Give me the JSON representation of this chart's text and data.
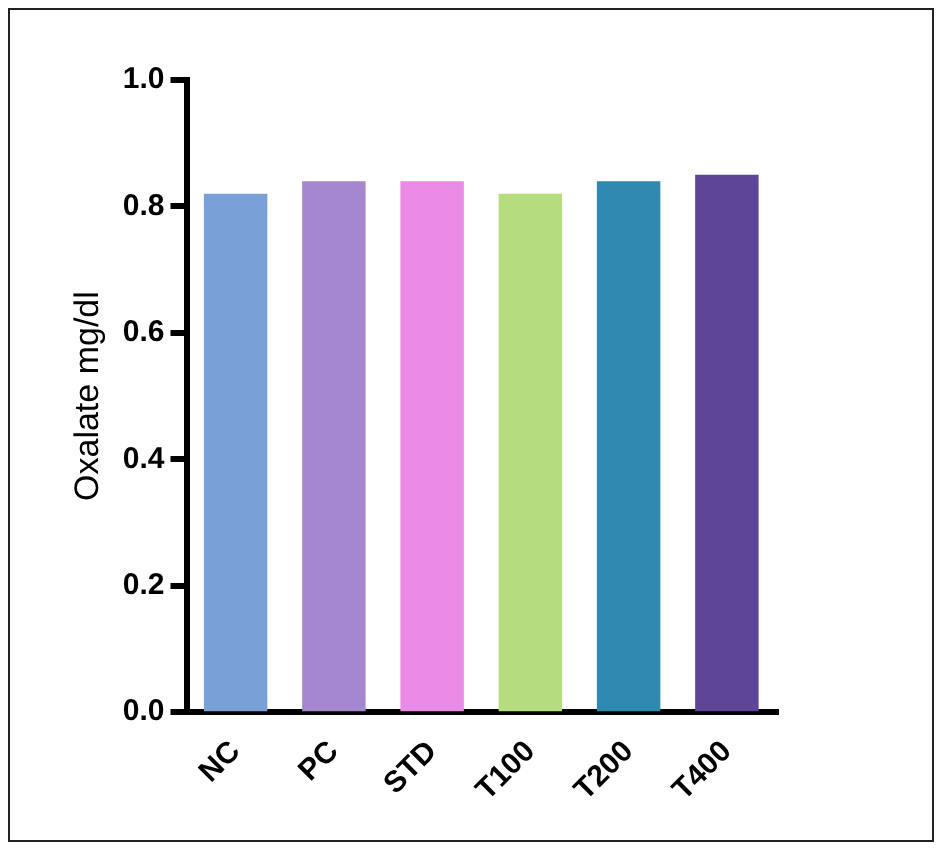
{
  "chart_data": {
    "type": "bar",
    "ylabel": "Oxalate mg/dl",
    "categories": [
      "NC",
      "PC",
      "STD",
      "T100",
      "T200",
      "T400"
    ],
    "values": [
      0.82,
      0.84,
      0.84,
      0.82,
      0.84,
      0.85
    ],
    "colors": [
      "#7aa0d8",
      "#a487cf",
      "#e98ae6",
      "#b5dc7f",
      "#2e88b0",
      "#5e4597"
    ],
    "ylim": [
      0,
      1
    ],
    "yticks": [
      {
        "value": 0,
        "label": "0.0"
      },
      0.2,
      0.4,
      0.6,
      0.8,
      {
        "value": 1,
        "label": "1.0"
      }
    ],
    "grid": false,
    "legend": false
  }
}
